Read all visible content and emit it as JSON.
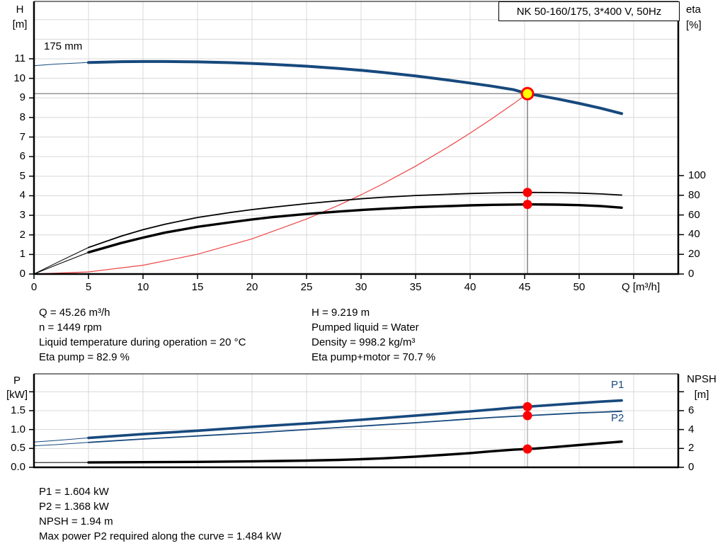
{
  "title_box": "NK 50-160/175, 3*400 V, 50Hz",
  "top_chart": {
    "axis_left_line1": "H",
    "axis_left_line2": "[m]",
    "axis_right_line1": "eta",
    "axis_right_line2": "[%]",
    "x_axis_label": "Q [m³/h]",
    "curve_label": "175 mm",
    "y_ticks_left": [
      "0",
      "1",
      "2",
      "3",
      "4",
      "5",
      "6",
      "7",
      "8",
      "9",
      "10",
      "11"
    ],
    "y_ticks_right": [
      "0",
      "20",
      "40",
      "60",
      "80",
      "100"
    ],
    "x_ticks": [
      "0",
      "5",
      "10",
      "15",
      "20",
      "25",
      "30",
      "35",
      "40",
      "45",
      "50"
    ]
  },
  "bottom_chart": {
    "axis_left_line1": "P",
    "axis_left_line2": "[kW]",
    "axis_right_line1": "NPSH",
    "axis_right_line2": "[m]",
    "p1_label": "P1",
    "p2_label": "P2",
    "y_ticks_left": [
      "0.0",
      "0.5",
      "1.0",
      "1.5"
    ],
    "y_ticks_right": [
      "0",
      "2",
      "4",
      "6"
    ]
  },
  "info_top": {
    "col1": [
      "Q = 45.26 m³/h",
      "n = 1449 rpm",
      "Liquid temperature during operation = 20 °C",
      "Eta pump = 82.9 %"
    ],
    "col2": [
      "H = 9.219 m",
      "Pumped liquid = Water",
      "Density = 998.2 kg/m³",
      "Eta pump+motor = 70.7 %"
    ]
  },
  "info_bottom": [
    "P1 = 1.604 kW",
    "P2 = 1.368 kW",
    "NPSH = 1.94 m",
    "Max power P2 required along the curve = 1.484 kW"
  ],
  "colors": {
    "curve_blue": "#17497d",
    "curve_black": "#000000",
    "system_red": "#ee4444",
    "dot_red": "#ff0000",
    "duty_yellow": "#ffff00",
    "grid_gray": "#d8d8d8",
    "ref_gray": "#808080"
  },
  "chart_data": [
    {
      "id": "hq-eta-chart",
      "type": "line",
      "title": "NK 50-160/175, 3*400 V, 50Hz",
      "xlabel": "Q [m³/h]",
      "ylabel_left": "H [m]",
      "ylabel_right": "eta [%]",
      "xlim": [
        0,
        59
      ],
      "ylim_left": [
        0,
        13.9
      ],
      "ylim_right": [
        0,
        100
      ],
      "grid": true,
      "duty_point": {
        "Q": 45.26,
        "H": 9.219,
        "eta_pump": 82.9,
        "eta_pump_motor": 70.7
      },
      "series": [
        {
          "name": "H 175 mm",
          "axis": "left",
          "color": "#17497d",
          "width": 4,
          "thin_until": 5,
          "points": [
            [
              0,
              10.65
            ],
            [
              2,
              10.73
            ],
            [
              5,
              10.81
            ],
            [
              8,
              10.85
            ],
            [
              10,
              10.86
            ],
            [
              12,
              10.86
            ],
            [
              15,
              10.84
            ],
            [
              18,
              10.8
            ],
            [
              20,
              10.76
            ],
            [
              22,
              10.71
            ],
            [
              25,
              10.62
            ],
            [
              28,
              10.5
            ],
            [
              30,
              10.41
            ],
            [
              32,
              10.3
            ],
            [
              35,
              10.12
            ],
            [
              38,
              9.91
            ],
            [
              40,
              9.76
            ],
            [
              42,
              9.6
            ],
            [
              44,
              9.42
            ],
            [
              45.26,
              9.219
            ],
            [
              46,
              9.15
            ],
            [
              48,
              8.95
            ],
            [
              50,
              8.72
            ],
            [
              52,
              8.47
            ],
            [
              53.9,
              8.2
            ]
          ]
        },
        {
          "name": "system curve",
          "axis": "left",
          "color": "#ee4444",
          "width": 1.2,
          "thin_until": 0,
          "points": [
            [
              0,
              0
            ],
            [
              5,
              0.11
            ],
            [
              10,
              0.45
            ],
            [
              15,
              1.01
            ],
            [
              20,
              1.8
            ],
            [
              25,
              2.81
            ],
            [
              28,
              3.53
            ],
            [
              30,
              4.05
            ],
            [
              32,
              4.61
            ],
            [
              35,
              5.51
            ],
            [
              38,
              6.5
            ],
            [
              40,
              7.2
            ],
            [
              42,
              7.94
            ],
            [
              44,
              8.71
            ],
            [
              45.26,
              9.219
            ]
          ]
        },
        {
          "name": "eta pump",
          "axis": "right",
          "color": "#000000",
          "width": 1.8,
          "thin_until": 5,
          "points": [
            [
              0,
              0
            ],
            [
              2,
              11
            ],
            [
              5,
              27
            ],
            [
              8,
              38.5
            ],
            [
              10,
              45
            ],
            [
              12,
              50.5
            ],
            [
              15,
              57.5
            ],
            [
              18,
              62.5
            ],
            [
              20,
              65.5
            ],
            [
              22,
              68
            ],
            [
              25,
              71.5
            ],
            [
              28,
              74.5
            ],
            [
              30,
              76.5
            ],
            [
              32,
              78
            ],
            [
              35,
              79.8
            ],
            [
              38,
              81
            ],
            [
              40,
              81.8
            ],
            [
              42,
              82.4
            ],
            [
              44,
              82.8
            ],
            [
              45.26,
              82.9
            ],
            [
              46,
              82.9
            ],
            [
              48,
              82.7
            ],
            [
              50,
              82.2
            ],
            [
              52,
              81.4
            ],
            [
              53.9,
              80.2
            ]
          ]
        },
        {
          "name": "eta pump+motor",
          "axis": "right",
          "color": "#000000",
          "width": 3.4,
          "thin_until": 5,
          "points": [
            [
              0,
              0
            ],
            [
              2,
              9
            ],
            [
              5,
              22
            ],
            [
              8,
              31.5
            ],
            [
              10,
              37
            ],
            [
              12,
              42
            ],
            [
              15,
              48
            ],
            [
              18,
              52.5
            ],
            [
              20,
              55.5
            ],
            [
              22,
              58
            ],
            [
              25,
              61
            ],
            [
              28,
              63.5
            ],
            [
              30,
              65
            ],
            [
              32,
              66.3
            ],
            [
              35,
              67.9
            ],
            [
              38,
              69
            ],
            [
              40,
              69.8
            ],
            [
              42,
              70.3
            ],
            [
              44,
              70.6
            ],
            [
              45.26,
              70.7
            ],
            [
              46,
              70.7
            ],
            [
              48,
              70.5
            ],
            [
              50,
              70
            ],
            [
              52,
              69
            ],
            [
              53.9,
              67.4
            ]
          ]
        }
      ]
    },
    {
      "id": "power-npsh-chart",
      "type": "line",
      "xlabel": "Q [m³/h]",
      "ylabel_left": "P [kW]",
      "ylabel_right": "NPSH [m]",
      "xlim": [
        0,
        59
      ],
      "ylim_left": [
        0,
        2.47
      ],
      "ylim_right": [
        0,
        9.9
      ],
      "grid": true,
      "duty_point": {
        "Q": 45.26,
        "P1": 1.604,
        "P2": 1.368,
        "NPSH": 1.94
      },
      "series": [
        {
          "name": "P1",
          "axis": "left",
          "color": "#17497d",
          "width": 3.6,
          "thin_until": 5,
          "points": [
            [
              0,
              0.67
            ],
            [
              2,
              0.71
            ],
            [
              5,
              0.78
            ],
            [
              10,
              0.88
            ],
            [
              15,
              0.97
            ],
            [
              20,
              1.07
            ],
            [
              25,
              1.16
            ],
            [
              30,
              1.26
            ],
            [
              35,
              1.37
            ],
            [
              40,
              1.48
            ],
            [
              42,
              1.53
            ],
            [
              44,
              1.58
            ],
            [
              45.26,
              1.604
            ],
            [
              46,
              1.62
            ],
            [
              48,
              1.66
            ],
            [
              50,
              1.7
            ],
            [
              52,
              1.74
            ],
            [
              53.9,
              1.77
            ]
          ]
        },
        {
          "name": "P2",
          "axis": "left",
          "color": "#17497d",
          "width": 1.8,
          "thin_until": 5,
          "points": [
            [
              0,
              0.57
            ],
            [
              2,
              0.6
            ],
            [
              5,
              0.66
            ],
            [
              10,
              0.75
            ],
            [
              15,
              0.83
            ],
            [
              20,
              0.91
            ],
            [
              25,
              1.0
            ],
            [
              30,
              1.09
            ],
            [
              35,
              1.18
            ],
            [
              40,
              1.28
            ],
            [
              42,
              1.32
            ],
            [
              44,
              1.35
            ],
            [
              45.26,
              1.368
            ],
            [
              46,
              1.38
            ],
            [
              48,
              1.41
            ],
            [
              50,
              1.44
            ],
            [
              52,
              1.46
            ],
            [
              53.9,
              1.484
            ]
          ]
        },
        {
          "name": "NPSH",
          "axis": "right",
          "color": "#000000",
          "width": 3.4,
          "thin_until": 5,
          "points": [
            [
              0,
              0.5
            ],
            [
              5,
              0.52
            ],
            [
              10,
              0.55
            ],
            [
              15,
              0.58
            ],
            [
              20,
              0.63
            ],
            [
              25,
              0.71
            ],
            [
              28,
              0.79
            ],
            [
              30,
              0.86
            ],
            [
              32,
              0.95
            ],
            [
              35,
              1.13
            ],
            [
              38,
              1.35
            ],
            [
              40,
              1.51
            ],
            [
              42,
              1.7
            ],
            [
              44,
              1.87
            ],
            [
              45.26,
              1.94
            ],
            [
              46,
              1.99
            ],
            [
              48,
              2.17
            ],
            [
              50,
              2.36
            ],
            [
              52,
              2.55
            ],
            [
              53.9,
              2.72
            ]
          ]
        }
      ]
    }
  ]
}
